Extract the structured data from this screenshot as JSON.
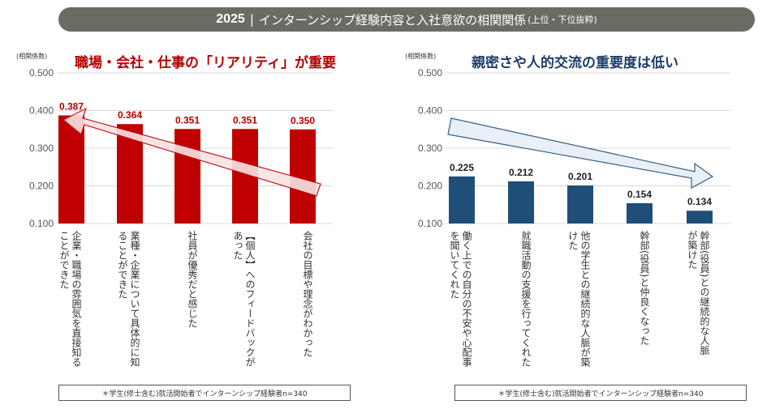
{
  "header": {
    "year": "2025",
    "separator": "|",
    "title": "インターンシップ経験内容と入社意欲の相関関係",
    "subtitle": "(上位・下位抜粋)"
  },
  "chart_data": [
    {
      "type": "bar",
      "title": "職場・会社・仕事の「リアリティ」が重要",
      "ylabel": "(相関係数)",
      "ylim": [
        0.1,
        0.5
      ],
      "yticks": [
        "0.500",
        "0.400",
        "0.300",
        "0.200",
        "0.100"
      ],
      "yticks_values": [
        0.5,
        0.4,
        0.3,
        0.2,
        0.1
      ],
      "categories": [
        "企業・職場の雰囲気を直接知ることができた",
        "業種・企業について具体的に知ることができた",
        "社員が優秀だと感じた",
        "【個人】へのフィードバックがあった",
        "会社の目標や理念がわかった"
      ],
      "values": [
        0.387,
        0.364,
        0.351,
        0.351,
        0.35
      ],
      "value_labels": [
        "0.387",
        "0.364",
        "0.351",
        "0.351",
        "0.350"
      ],
      "color": "#c00000",
      "title_color": "#b50000",
      "grid": true,
      "footnote": "＊学生(修士含む)就活開始者でインターンシップ経験者n=340"
    },
    {
      "type": "bar",
      "title": "親密さや人的交流の重要度は低い",
      "ylabel": "(相関係数)",
      "ylim": [
        0.1,
        0.5
      ],
      "yticks": [
        "0.500",
        "0.400",
        "0.300",
        "0.200",
        "0.100"
      ],
      "yticks_values": [
        0.5,
        0.4,
        0.3,
        0.2,
        0.1
      ],
      "categories": [
        "働く上での自分の不安や心配事を聞いてくれた",
        "就職活動の支援を行ってくれた",
        "他の学生との継続的な人脈が築けた",
        "幹部(役員)と仲良くなった",
        "幹部(役員)との継続的な人脈が築けた"
      ],
      "values": [
        0.225,
        0.212,
        0.201,
        0.154,
        0.134
      ],
      "value_labels": [
        "0.225",
        "0.212",
        "0.201",
        "0.154",
        "0.134"
      ],
      "color": "#1f4e79",
      "title_color": "#1e3e68",
      "grid": true,
      "footnote": "＊学生(修士含む)就活開始者でインターンシップ経験者n=340"
    }
  ],
  "colors": {
    "header_bg": "#6b6b63",
    "grid": "#d9d9d9",
    "arrow_left_fill": "#f8e4e4",
    "arrow_left_stroke": "#c00000",
    "arrow_right_fill": "#e6eef6",
    "arrow_right_stroke": "#1f4e79"
  }
}
